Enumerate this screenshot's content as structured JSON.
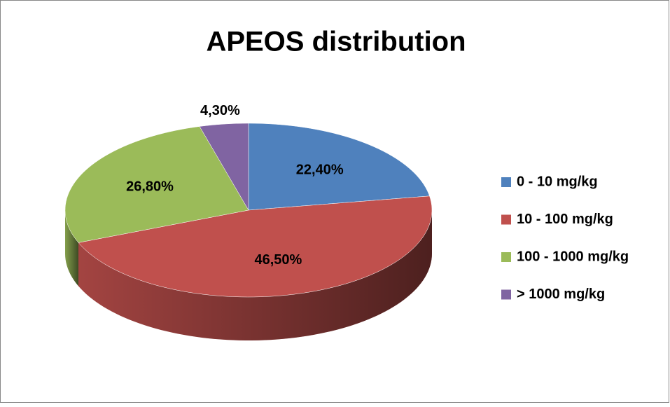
{
  "chart_data": {
    "type": "pie",
    "title": "APEOS distribution",
    "categories": [
      "0 - 10 mg/kg",
      "10 - 100 mg/kg",
      "100 - 1000 mg/kg",
      "> 1000 mg/kg"
    ],
    "values": [
      22.4,
      46.5,
      26.8,
      4.3
    ],
    "value_labels": [
      "22,40%",
      "46,50%",
      "26,80%",
      "4,30%"
    ],
    "colors": [
      "#4f81bd",
      "#c0504d",
      "#9bbb59",
      "#8064a2"
    ],
    "legend": "right"
  }
}
